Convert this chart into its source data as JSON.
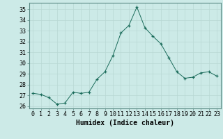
{
  "x": [
    0,
    1,
    2,
    3,
    4,
    5,
    6,
    7,
    8,
    9,
    10,
    11,
    12,
    13,
    14,
    15,
    16,
    17,
    18,
    19,
    20,
    21,
    22,
    23
  ],
  "y": [
    27.2,
    27.1,
    26.8,
    26.2,
    26.3,
    27.3,
    27.2,
    27.3,
    28.5,
    29.2,
    30.7,
    32.8,
    33.5,
    35.2,
    33.3,
    32.5,
    31.8,
    30.5,
    29.2,
    28.6,
    28.7,
    29.1,
    29.2,
    28.8
  ],
  "line_color": "#1a6b5a",
  "marker": "+",
  "marker_color": "#1a6b5a",
  "bg_color": "#cceae7",
  "grid_color": "#b8d8d4",
  "axis_label": "Humidex (Indice chaleur)",
  "ylim": [
    25.8,
    35.6
  ],
  "yticks": [
    26,
    27,
    28,
    29,
    30,
    31,
    32,
    33,
    34,
    35
  ],
  "xlim": [
    -0.5,
    23.5
  ],
  "axis_fontsize": 7,
  "tick_fontsize": 6
}
